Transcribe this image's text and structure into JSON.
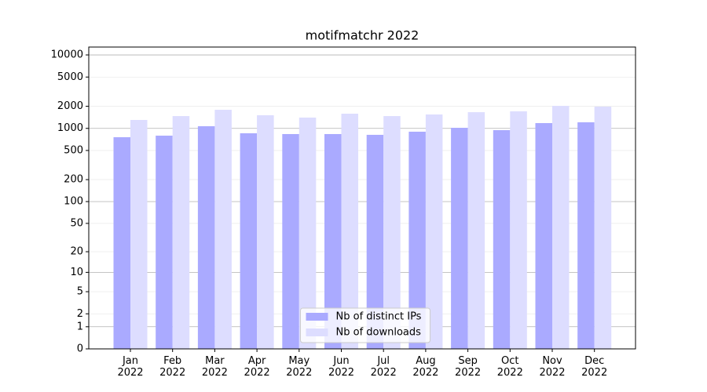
{
  "chart_data": {
    "type": "bar",
    "title": "motifmatchr 2022",
    "categories": [
      "Jan\n2022",
      "Feb\n2022",
      "Mar\n2022",
      "Apr\n2022",
      "May\n2022",
      "Jun\n2022",
      "Jul\n2022",
      "Aug\n2022",
      "Sep\n2022",
      "Oct\n2022",
      "Nov\n2022",
      "Dec\n2022"
    ],
    "series": [
      {
        "name": "Nb of distinct IPs",
        "color": "#aaaaff",
        "values": [
          758,
          796,
          1070,
          858,
          837,
          837,
          817,
          901,
          1018,
          946,
          1181,
          1210
        ]
      },
      {
        "name": "Nb of downloads",
        "color": "#ddddff",
        "values": [
          1302,
          1471,
          1792,
          1509,
          1403,
          1585,
          1471,
          1546,
          1662,
          1706,
          2026,
          1977
        ]
      }
    ],
    "yscale": "log1p",
    "ylim": [
      0,
      12800
    ],
    "yticks": [
      0,
      1,
      2,
      5,
      10,
      20,
      50,
      100,
      200,
      500,
      1000,
      2000,
      5000,
      10000
    ],
    "grid": true,
    "legend": "lower center"
  }
}
